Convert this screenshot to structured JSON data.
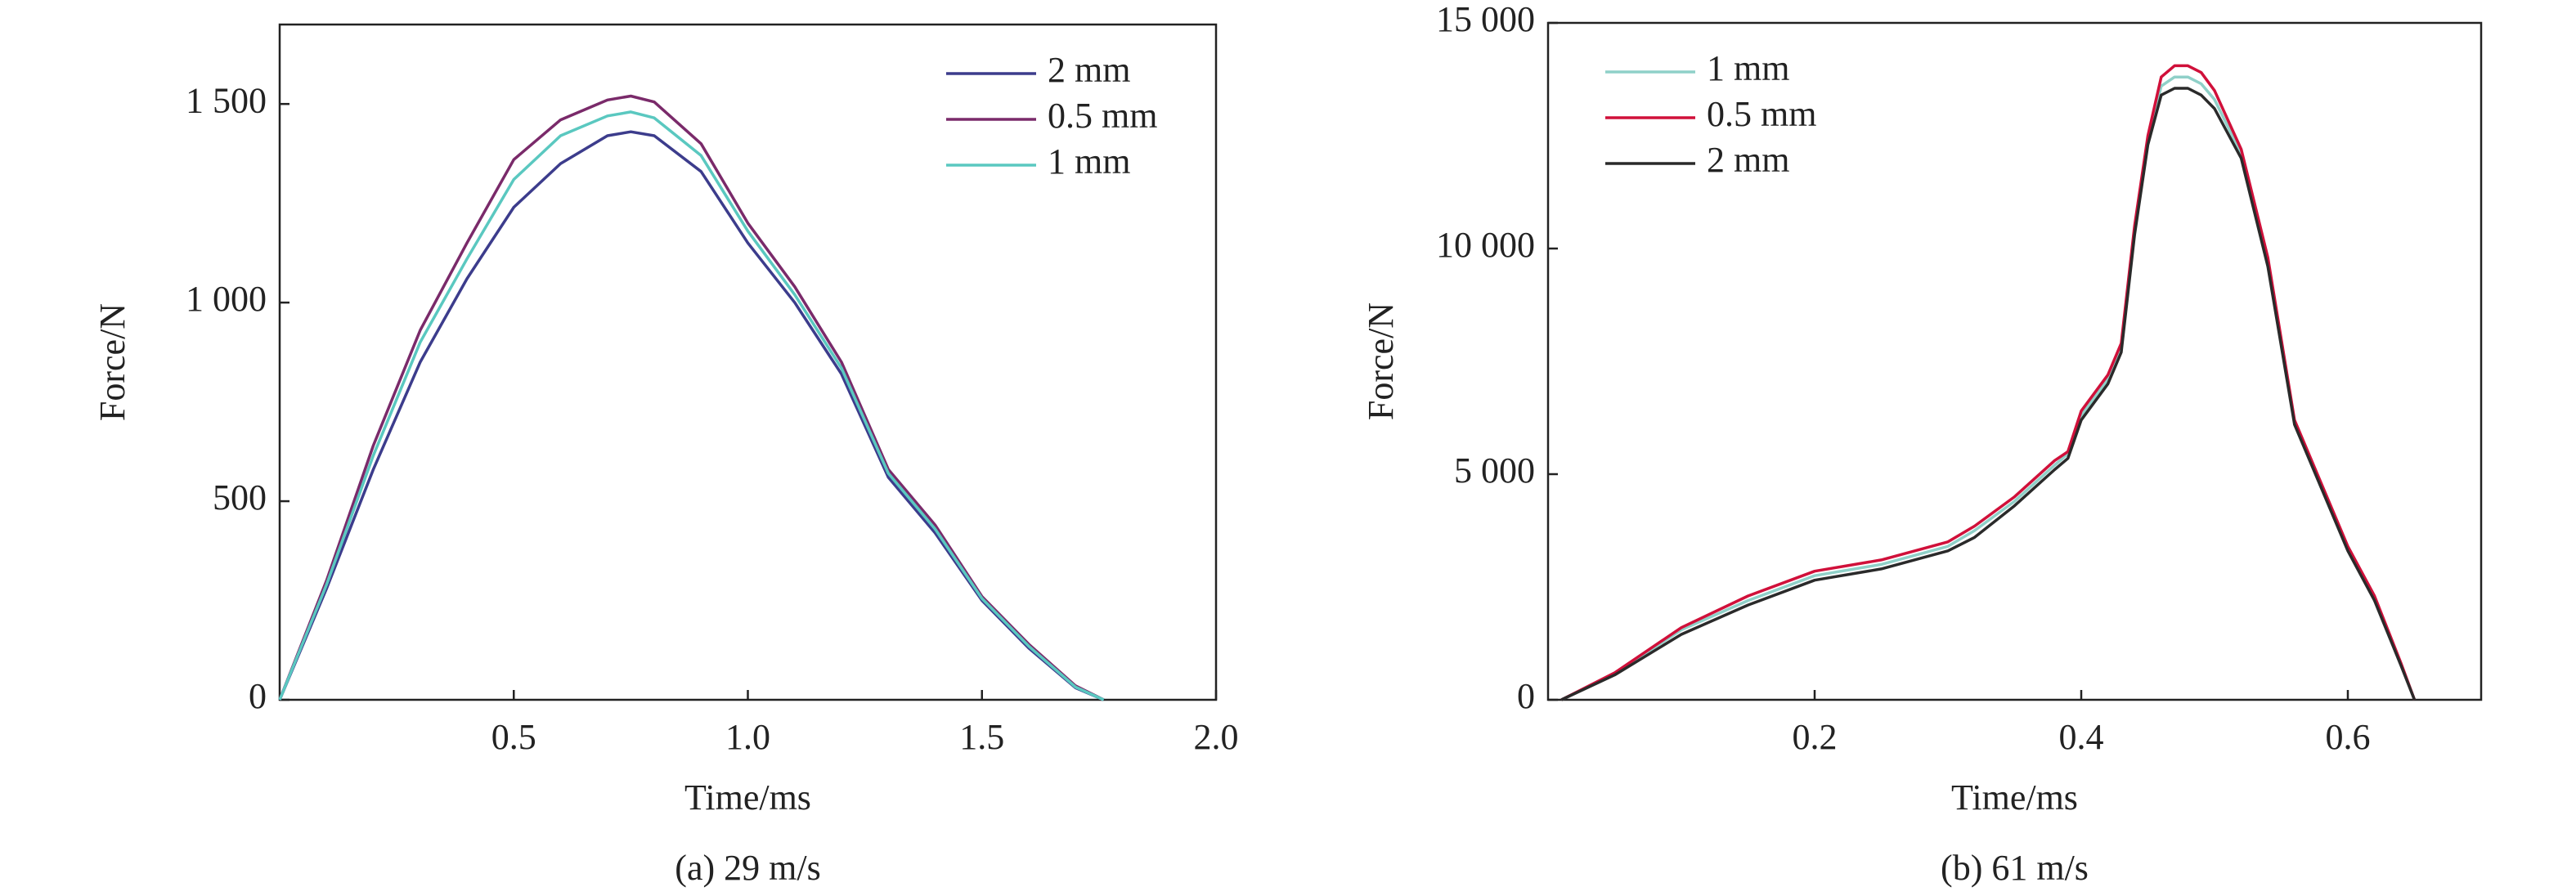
{
  "chart_data": [
    {
      "type": "line",
      "caption": "(a) 29 m/s",
      "xlabel": "Time/ms",
      "ylabel": "Force/N",
      "x": [
        0,
        0.1,
        0.2,
        0.3,
        0.4,
        0.5,
        0.6,
        0.7,
        0.75,
        0.8,
        0.9,
        1.0,
        1.1,
        1.2,
        1.3,
        1.4,
        1.5,
        1.6,
        1.7,
        1.76
      ],
      "series": [
        {
          "name": "2 mm",
          "color": "#3c3c8c",
          "values": [
            0,
            280,
            580,
            850,
            1060,
            1240,
            1350,
            1420,
            1430,
            1420,
            1330,
            1150,
            1000,
            820,
            560,
            420,
            250,
            130,
            30,
            0
          ]
        },
        {
          "name": "0.5 mm",
          "color": "#7a2a6a",
          "values": [
            0,
            300,
            640,
            930,
            1150,
            1360,
            1460,
            1510,
            1520,
            1505,
            1400,
            1200,
            1040,
            850,
            580,
            440,
            260,
            140,
            35,
            0
          ]
        },
        {
          "name": "1 mm",
          "color": "#5ac8c0",
          "values": [
            0,
            290,
            615,
            900,
            1110,
            1310,
            1420,
            1470,
            1480,
            1465,
            1370,
            1180,
            1020,
            835,
            570,
            430,
            255,
            135,
            32,
            0
          ]
        }
      ],
      "xlim": [
        0,
        2
      ],
      "xticks": [
        0.5,
        {
          "value": 1,
          "label": "1.0"
        },
        1.5,
        {
          "value": 2,
          "label": "2.0"
        }
      ],
      "ylim": [
        0,
        1700
      ],
      "yticks": [
        0,
        500,
        {
          "value": 1000,
          "label": "1 000"
        },
        {
          "value": 1500,
          "label": "1 500"
        }
      ],
      "legend": "upper right"
    },
    {
      "type": "line",
      "caption": "(b) 61 m/s",
      "xlabel": "Time/ms",
      "ylabel": "Force/N",
      "x": [
        0.01,
        0.05,
        0.1,
        0.15,
        0.2,
        0.25,
        0.3,
        0.32,
        0.35,
        0.38,
        0.39,
        0.4,
        0.42,
        0.43,
        0.44,
        0.45,
        0.46,
        0.47,
        0.48,
        0.49,
        0.5,
        0.52,
        0.54,
        0.56,
        0.58,
        0.6,
        0.62,
        0.64,
        0.65
      ],
      "series": [
        {
          "name": "1 mm",
          "color": "#8fd0c8",
          "values": [
            0,
            580,
            1550,
            2200,
            2750,
            3000,
            3400,
            3750,
            4400,
            5200,
            5450,
            6300,
            7100,
            7800,
            10400,
            12400,
            13600,
            13800,
            13800,
            13650,
            13300,
            12100,
            9700,
            6150,
            4750,
            3350,
            2250,
            780,
            0
          ]
        },
        {
          "name": "0.5 mm",
          "color": "#d0103a",
          "values": [
            0,
            600,
            1600,
            2300,
            2850,
            3100,
            3500,
            3850,
            4500,
            5300,
            5500,
            6400,
            7200,
            7900,
            10500,
            12500,
            13800,
            14050,
            14050,
            13900,
            13500,
            12200,
            9800,
            6200,
            4800,
            3400,
            2300,
            800,
            0
          ]
        },
        {
          "name": "2 mm",
          "color": "#2a2a2a",
          "values": [
            0,
            550,
            1450,
            2100,
            2650,
            2900,
            3300,
            3600,
            4300,
            5100,
            5350,
            6200,
            7000,
            7700,
            10300,
            12300,
            13400,
            13550,
            13550,
            13400,
            13100,
            12000,
            9600,
            6100,
            4700,
            3300,
            2200,
            750,
            0
          ]
        }
      ],
      "xlim": [
        0,
        0.7
      ],
      "xticks": [
        0.2,
        0.4,
        0.6
      ],
      "ylim": [
        0,
        15000
      ],
      "yticks": [
        0,
        {
          "value": 5000,
          "label": "5 000"
        },
        {
          "value": 10000,
          "label": "10 000"
        },
        {
          "value": 15000,
          "label": "15 000"
        }
      ],
      "legend": "upper left"
    }
  ]
}
